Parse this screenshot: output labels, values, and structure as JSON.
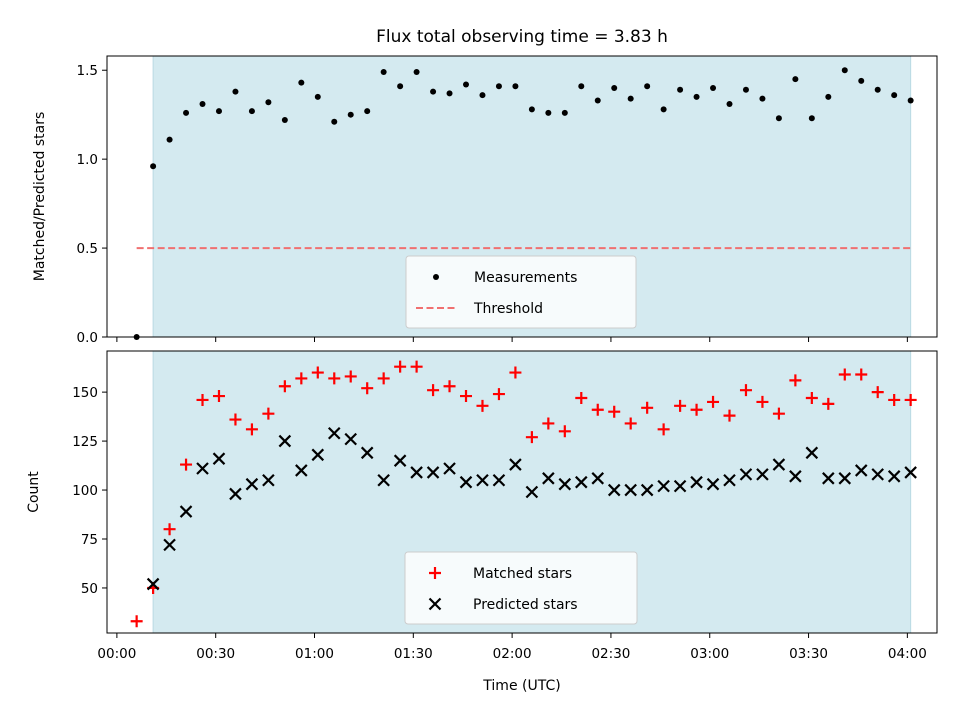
{
  "chart_data": {
    "title": "Flux total observing time = 3.83 h",
    "xlabel": "Time (UTC)",
    "x_ticks": [
      "00:00",
      "00:30",
      "01:00",
      "01:30",
      "02:00",
      "02:30",
      "03:00",
      "03:30",
      "04:00"
    ],
    "x_range": [
      "23:57",
      "04:09"
    ],
    "observing_window": {
      "start": "00:11",
      "end": "04:01",
      "shade_color": "#d4eaf0"
    },
    "panels": [
      {
        "type": "scatter",
        "ylabel": "Matched/Predicted stars",
        "ylim": [
          0,
          1.58
        ],
        "y_ticks": [
          "0.0",
          "0.5",
          "1.0",
          "1.5"
        ],
        "legend": {
          "placement": "lower-center",
          "entries": [
            "Measurements",
            "Threshold"
          ]
        },
        "series": [
          {
            "name": "Measurements",
            "marker": "dot",
            "color": "#000000",
            "points": [
              [
                "00:06",
                0.0
              ],
              [
                "00:11",
                0.96
              ],
              [
                "00:16",
                1.11
              ],
              [
                "00:21",
                1.26
              ],
              [
                "00:26",
                1.31
              ],
              [
                "00:31",
                1.27
              ],
              [
                "00:36",
                1.38
              ],
              [
                "00:41",
                1.27
              ],
              [
                "00:46",
                1.32
              ],
              [
                "00:51",
                1.22
              ],
              [
                "00:56",
                1.43
              ],
              [
                "01:01",
                1.35
              ],
              [
                "01:06",
                1.21
              ],
              [
                "01:11",
                1.25
              ],
              [
                "01:16",
                1.27
              ],
              [
                "01:21",
                1.49
              ],
              [
                "01:26",
                1.41
              ],
              [
                "01:31",
                1.49
              ],
              [
                "01:36",
                1.38
              ],
              [
                "01:41",
                1.37
              ],
              [
                "01:46",
                1.42
              ],
              [
                "01:51",
                1.36
              ],
              [
                "01:56",
                1.41
              ],
              [
                "02:01",
                1.41
              ],
              [
                "02:06",
                1.28
              ],
              [
                "02:11",
                1.26
              ],
              [
                "02:16",
                1.26
              ],
              [
                "02:21",
                1.41
              ],
              [
                "02:26",
                1.33
              ],
              [
                "02:31",
                1.4
              ],
              [
                "02:36",
                1.34
              ],
              [
                "02:41",
                1.41
              ],
              [
                "02:46",
                1.28
              ],
              [
                "02:51",
                1.39
              ],
              [
                "02:56",
                1.35
              ],
              [
                "03:01",
                1.4
              ],
              [
                "03:06",
                1.31
              ],
              [
                "03:11",
                1.39
              ],
              [
                "03:16",
                1.34
              ],
              [
                "03:21",
                1.23
              ],
              [
                "03:26",
                1.45
              ],
              [
                "03:31",
                1.23
              ],
              [
                "03:36",
                1.35
              ],
              [
                "03:41",
                1.5
              ],
              [
                "03:46",
                1.44
              ],
              [
                "03:51",
                1.39
              ],
              [
                "03:56",
                1.36
              ],
              [
                "04:01",
                1.33
              ]
            ]
          },
          {
            "name": "Threshold",
            "type": "line",
            "style": "dashed",
            "color": "#f07070",
            "points": [
              [
                "00:06",
                0.5
              ],
              [
                "04:01",
                0.5
              ]
            ]
          }
        ]
      },
      {
        "type": "scatter",
        "ylabel": "Count",
        "ylim": [
          27,
          171
        ],
        "y_ticks": [
          "50",
          "75",
          "100",
          "125",
          "150"
        ],
        "legend": {
          "placement": "lower-center",
          "entries": [
            "Matched stars",
            "Predicted stars"
          ]
        },
        "series": [
          {
            "name": "Matched stars",
            "marker": "plus",
            "color": "#ff0000",
            "points": [
              [
                "00:06",
                33
              ],
              [
                "00:11",
                50
              ],
              [
                "00:16",
                80
              ],
              [
                "00:21",
                113
              ],
              [
                "00:26",
                146
              ],
              [
                "00:31",
                148
              ],
              [
                "00:36",
                136
              ],
              [
                "00:41",
                131
              ],
              [
                "00:46",
                139
              ],
              [
                "00:51",
                153
              ],
              [
                "00:56",
                157
              ],
              [
                "01:01",
                160
              ],
              [
                "01:06",
                157
              ],
              [
                "01:11",
                158
              ],
              [
                "01:16",
                152
              ],
              [
                "01:21",
                157
              ],
              [
                "01:26",
                163
              ],
              [
                "01:31",
                163
              ],
              [
                "01:36",
                151
              ],
              [
                "01:41",
                153
              ],
              [
                "01:46",
                148
              ],
              [
                "01:51",
                143
              ],
              [
                "01:56",
                149
              ],
              [
                "02:01",
                160
              ],
              [
                "02:06",
                127
              ],
              [
                "02:11",
                134
              ],
              [
                "02:16",
                130
              ],
              [
                "02:21",
                147
              ],
              [
                "02:26",
                141
              ],
              [
                "02:31",
                140
              ],
              [
                "02:36",
                134
              ],
              [
                "02:41",
                142
              ],
              [
                "02:46",
                131
              ],
              [
                "02:51",
                143
              ],
              [
                "02:56",
                141
              ],
              [
                "03:01",
                145
              ],
              [
                "03:06",
                138
              ],
              [
                "03:11",
                151
              ],
              [
                "03:16",
                145
              ],
              [
                "03:21",
                139
              ],
              [
                "03:26",
                156
              ],
              [
                "03:31",
                147
              ],
              [
                "03:36",
                144
              ],
              [
                "03:41",
                159
              ],
              [
                "03:46",
                159
              ],
              [
                "03:51",
                150
              ],
              [
                "03:56",
                146
              ],
              [
                "04:01",
                146
              ]
            ]
          },
          {
            "name": "Predicted stars",
            "marker": "x",
            "color": "#000000",
            "points": [
              [
                "00:11",
                52
              ],
              [
                "00:16",
                72
              ],
              [
                "00:21",
                89
              ],
              [
                "00:26",
                111
              ],
              [
                "00:31",
                116
              ],
              [
                "00:36",
                98
              ],
              [
                "00:41",
                103
              ],
              [
                "00:46",
                105
              ],
              [
                "00:51",
                125
              ],
              [
                "00:56",
                110
              ],
              [
                "01:01",
                118
              ],
              [
                "01:06",
                129
              ],
              [
                "01:11",
                126
              ],
              [
                "01:16",
                119
              ],
              [
                "01:21",
                105
              ],
              [
                "01:26",
                115
              ],
              [
                "01:31",
                109
              ],
              [
                "01:36",
                109
              ],
              [
                "01:41",
                111
              ],
              [
                "01:46",
                104
              ],
              [
                "01:51",
                105
              ],
              [
                "01:56",
                105
              ],
              [
                "02:01",
                113
              ],
              [
                "02:06",
                99
              ],
              [
                "02:11",
                106
              ],
              [
                "02:16",
                103
              ],
              [
                "02:21",
                104
              ],
              [
                "02:26",
                106
              ],
              [
                "02:31",
                100
              ],
              [
                "02:36",
                100
              ],
              [
                "02:41",
                100
              ],
              [
                "02:46",
                102
              ],
              [
                "02:51",
                102
              ],
              [
                "02:56",
                104
              ],
              [
                "03:01",
                103
              ],
              [
                "03:06",
                105
              ],
              [
                "03:11",
                108
              ],
              [
                "03:16",
                108
              ],
              [
                "03:21",
                113
              ],
              [
                "03:26",
                107
              ],
              [
                "03:31",
                119
              ],
              [
                "03:36",
                106
              ],
              [
                "03:41",
                106
              ],
              [
                "03:46",
                110
              ],
              [
                "03:51",
                108
              ],
              [
                "03:56",
                107
              ],
              [
                "04:01",
                109
              ]
            ]
          }
        ]
      }
    ]
  }
}
